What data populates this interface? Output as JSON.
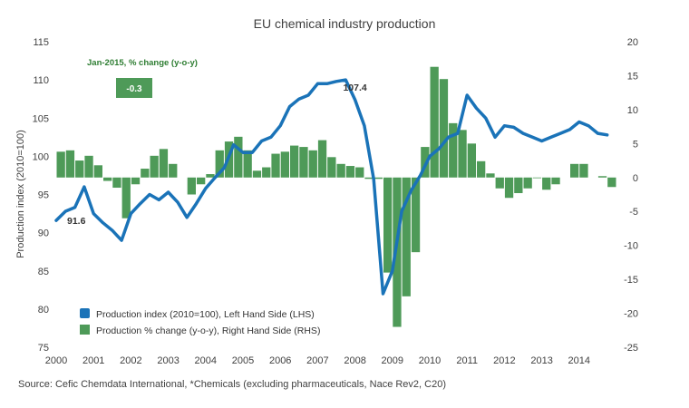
{
  "chart_data": {
    "type": "bar+line",
    "title": "EU chemical industry production",
    "source": "Source: Cefic Chemdata International, *Chemicals (excluding pharmaceuticals, Nace Rev2, C20)",
    "ylabel_left": "Production index (2010=100)",
    "ylim_left": [
      75,
      115
    ],
    "yticks_left": [
      "115",
      "110",
      "105",
      "100",
      "95",
      "90",
      "85",
      "80",
      "75"
    ],
    "ylim_right": [
      -25,
      20
    ],
    "yticks_right": [
      "20",
      "15",
      "10",
      "5",
      "0",
      "-5",
      "-10",
      "-15",
      "-20",
      "-25"
    ],
    "xticks": [
      "2000",
      "2001",
      "2002",
      "2003",
      "2004",
      "2005",
      "2006",
      "2007",
      "2008",
      "2009",
      "2010",
      "2011",
      "2012",
      "2013",
      "2014"
    ],
    "x_range": [
      2000.0,
      2015.0
    ],
    "callout_title": "Jan-2015, % change (y-o-y)",
    "callout_value": "-0.3",
    "annotations": [
      {
        "label": "91.6",
        "x": 2000.0,
        "y": 91.6
      },
      {
        "label": "107.4",
        "x": 2008.0,
        "y": 107.4
      }
    ],
    "series": [
      {
        "name": "Production index (2010=100), Left Hand Side (LHS)",
        "kind": "line",
        "axis": "left",
        "color": "#1a73b8",
        "x": [
          2000.0,
          2000.25,
          2000.5,
          2000.75,
          2001.0,
          2001.25,
          2001.5,
          2001.75,
          2002.0,
          2002.25,
          2002.5,
          2002.75,
          2003.0,
          2003.25,
          2003.5,
          2003.75,
          2004.0,
          2004.25,
          2004.5,
          2004.75,
          2005.0,
          2005.25,
          2005.5,
          2005.75,
          2006.0,
          2006.25,
          2006.5,
          2006.75,
          2007.0,
          2007.25,
          2007.5,
          2007.75,
          2008.0,
          2008.25,
          2008.5,
          2008.75,
          2009.0,
          2009.25,
          2009.5,
          2009.75,
          2010.0,
          2010.25,
          2010.5,
          2010.75,
          2011.0,
          2011.25,
          2011.5,
          2011.75,
          2012.0,
          2012.25,
          2012.5,
          2012.75,
          2013.0,
          2013.25,
          2013.5,
          2013.75,
          2014.0,
          2014.25,
          2014.5,
          2014.75
        ],
        "values": [
          91.6,
          92.8,
          93.3,
          96.0,
          92.5,
          91.3,
          90.3,
          89.0,
          92.5,
          93.8,
          95.0,
          94.3,
          95.3,
          94.0,
          92.0,
          93.8,
          95.8,
          97.2,
          98.5,
          101.5,
          100.5,
          100.5,
          102.0,
          102.5,
          104.0,
          106.5,
          107.5,
          108.0,
          109.5,
          109.5,
          109.8,
          110.0,
          107.4,
          104.0,
          97.0,
          82.0,
          85.0,
          92.8,
          95.5,
          97.5,
          100.0,
          101.0,
          102.5,
          103.0,
          108.0,
          106.3,
          105.0,
          102.5,
          104.0,
          103.8,
          103.0,
          102.5,
          102.0,
          102.5,
          103.0,
          103.5,
          104.5,
          104.0,
          103.0,
          102.8
        ]
      },
      {
        "name": "Production  % change (y-o-y), Right Hand Side (RHS)",
        "kind": "bar",
        "axis": "right",
        "color": "#4e9a58",
        "x": [
          2000.125,
          2000.375,
          2000.625,
          2000.875,
          2001.125,
          2001.375,
          2001.625,
          2001.875,
          2002.125,
          2002.375,
          2002.625,
          2002.875,
          2003.125,
          2003.375,
          2003.625,
          2003.875,
          2004.125,
          2004.375,
          2004.625,
          2004.875,
          2005.125,
          2005.375,
          2005.625,
          2005.875,
          2006.125,
          2006.375,
          2006.625,
          2006.875,
          2007.125,
          2007.375,
          2007.625,
          2007.875,
          2008.125,
          2008.375,
          2008.625,
          2008.875,
          2009.125,
          2009.375,
          2009.625,
          2009.875,
          2010.125,
          2010.375,
          2010.625,
          2010.875,
          2011.125,
          2011.375,
          2011.625,
          2011.875,
          2012.125,
          2012.375,
          2012.625,
          2012.875,
          2013.125,
          2013.375,
          2013.625,
          2013.875,
          2014.125,
          2014.375,
          2014.625,
          2014.875
        ],
        "values": [
          3.8,
          4.0,
          2.5,
          3.2,
          1.8,
          -0.5,
          -1.5,
          -6.0,
          -1.0,
          1.3,
          3.2,
          4.2,
          2.0,
          0,
          -2.5,
          -1.0,
          0.5,
          4.0,
          5.3,
          6.0,
          4.0,
          1.0,
          1.5,
          3.5,
          3.8,
          4.7,
          4.5,
          4.0,
          5.5,
          3.0,
          2.0,
          1.7,
          1.5,
          -0.2,
          -0.2,
          -14.0,
          -22.0,
          -17.5,
          -11.0,
          4.5,
          16.3,
          14.5,
          8.0,
          7.0,
          5.0,
          2.4,
          0.6,
          -1.6,
          -3.0,
          -2.3,
          -1.6,
          -0.1,
          -1.8,
          -1.0,
          0,
          2.0,
          2.0,
          0,
          0.2,
          -1.4
        ]
      }
    ]
  }
}
